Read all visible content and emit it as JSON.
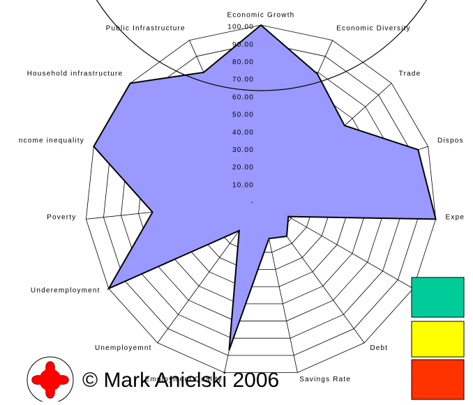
{
  "chart_data": {
    "type": "radar",
    "categories": [
      "Economic Growth",
      "Economic Diversity",
      "Trade",
      "Dispos",
      "Expe",
      null,
      "Debt",
      "Savings Rate",
      "Employment Quality",
      "Unemployemnt",
      "Underemployment",
      "Poverty",
      "ncome inequality",
      "Household infrastructure",
      "Public Infrastructure"
    ],
    "values": [
      100,
      79,
      64,
      94,
      100,
      18,
      25,
      22,
      87,
      21,
      100,
      62,
      100,
      100,
      80
    ],
    "color": "#9999ff",
    "ylim": [
      0,
      100
    ],
    "yticks": [
      {
        "value": 0,
        "label": "-"
      },
      {
        "value": 10,
        "label": "10.00"
      },
      {
        "value": 20,
        "label": "20.00"
      },
      {
        "value": 30,
        "label": "30.00"
      },
      {
        "value": 40,
        "label": "40.00"
      },
      {
        "value": 50,
        "label": "50.00"
      },
      {
        "value": 60,
        "label": "60.00"
      },
      {
        "value": 70,
        "label": "70.00"
      },
      {
        "value": 80,
        "label": "80.00"
      },
      {
        "value": 90,
        "label": "90.00"
      },
      {
        "value": 100,
        "label": "100.00"
      }
    ],
    "grid": true,
    "annotation": "© Mark Anielski 2006"
  }
}
